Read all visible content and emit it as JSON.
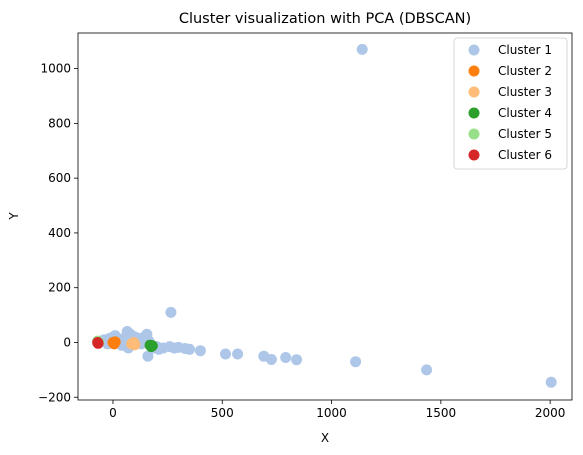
{
  "chart_data": {
    "type": "scatter",
    "title": "Cluster visualization with PCA (DBSCAN)",
    "xlabel": "X",
    "ylabel": "Y",
    "xlim": [
      -160,
      2100
    ],
    "ylim": [
      -210,
      1130
    ],
    "xticks": [
      0,
      500,
      1000,
      1500,
      2000
    ],
    "yticks": [
      -200,
      0,
      200,
      400,
      600,
      800,
      1000
    ],
    "grid": false,
    "legend_position": "top-right",
    "series": [
      {
        "name": "Cluster 1",
        "color": "#aec7e8",
        "points": [
          [
            1140,
            1070
          ],
          [
            265,
            110
          ],
          [
            -55,
            5
          ],
          [
            -40,
            10
          ],
          [
            -25,
            -5
          ],
          [
            -15,
            15
          ],
          [
            0,
            20
          ],
          [
            10,
            25
          ],
          [
            20,
            10
          ],
          [
            30,
            0
          ],
          [
            40,
            -10
          ],
          [
            50,
            15
          ],
          [
            60,
            5
          ],
          [
            65,
            40
          ],
          [
            70,
            -20
          ],
          [
            80,
            30
          ],
          [
            90,
            10
          ],
          [
            100,
            20
          ],
          [
            110,
            0
          ],
          [
            120,
            15
          ],
          [
            130,
            -5
          ],
          [
            140,
            10
          ],
          [
            150,
            25
          ],
          [
            155,
            30
          ],
          [
            160,
            -50
          ],
          [
            165,
            5
          ],
          [
            175,
            -10
          ],
          [
            190,
            -20
          ],
          [
            200,
            -15
          ],
          [
            210,
            -25
          ],
          [
            230,
            -20
          ],
          [
            260,
            -15
          ],
          [
            280,
            -20
          ],
          [
            300,
            -18
          ],
          [
            330,
            -22
          ],
          [
            350,
            -25
          ],
          [
            400,
            -30
          ],
          [
            515,
            -42
          ],
          [
            570,
            -42
          ],
          [
            690,
            -50
          ],
          [
            725,
            -62
          ],
          [
            790,
            -55
          ],
          [
            840,
            -63
          ],
          [
            1110,
            -70
          ],
          [
            1435,
            -100
          ],
          [
            2005,
            -145
          ]
        ]
      },
      {
        "name": "Cluster 2",
        "color": "#ff7f0e",
        "points": [
          [
            0,
            0
          ],
          [
            5,
            -5
          ],
          [
            10,
            2
          ]
        ]
      },
      {
        "name": "Cluster 3",
        "color": "#ffbb78",
        "points": [
          [
            85,
            -5
          ],
          [
            95,
            0
          ],
          [
            100,
            -8
          ]
        ]
      },
      {
        "name": "Cluster 4",
        "color": "#2ca02c",
        "points": [
          [
            170,
            -10
          ],
          [
            175,
            -15
          ],
          [
            180,
            -12
          ]
        ]
      },
      {
        "name": "Cluster 5",
        "color": "#98df8a",
        "points": [
          [
            -70,
            5
          ],
          [
            -65,
            0
          ]
        ]
      },
      {
        "name": "Cluster 6",
        "color": "#d62728",
        "points": [
          [
            -70,
            0
          ],
          [
            -68,
            -3
          ]
        ]
      }
    ]
  }
}
